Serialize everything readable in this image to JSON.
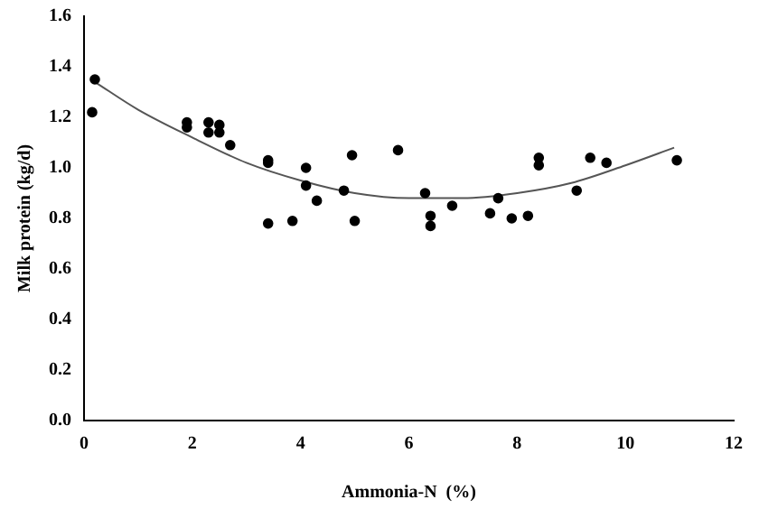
{
  "chart_data": {
    "type": "scatter",
    "xlabel": "Ammonia-N  (%)",
    "ylabel": "Milk protein (kg/d)",
    "xlim": [
      0,
      12
    ],
    "xticks": [
      0,
      2,
      4,
      6,
      8,
      10,
      12
    ],
    "ylim": [
      0,
      1.6
    ],
    "yticks": [
      {
        "value": 0,
        "label": "0.0"
      },
      {
        "value": 0.2,
        "label": "0.2"
      },
      {
        "value": 0.4,
        "label": "0.4"
      },
      {
        "value": 0.6,
        "label": "0.6"
      },
      {
        "value": 0.8,
        "label": "0.8"
      },
      {
        "value": 1,
        "label": "1.0"
      },
      {
        "value": 1.2,
        "label": "1.2"
      },
      {
        "value": 1.4,
        "label": "1.4"
      },
      {
        "value": 1.6,
        "label": "1.6"
      }
    ],
    "grid": false,
    "legend": false,
    "marker": "circle",
    "series": [
      {
        "type": "scatter",
        "color": "#000000",
        "x": [
          0.15,
          0.2,
          1.9,
          1.9,
          2.3,
          2.3,
          2.5,
          2.5,
          2.7,
          3.4,
          3.4,
          3.4,
          3.85,
          4.1,
          4.1,
          4.3,
          4.8,
          4.95,
          5.0,
          5.8,
          6.3,
          6.4,
          6.4,
          6.8,
          7.5,
          7.65,
          7.9,
          8.2,
          8.4,
          8.4,
          9.1,
          9.35,
          9.65,
          10.95
        ],
        "values": [
          1.22,
          1.35,
          1.18,
          1.16,
          1.18,
          1.14,
          1.17,
          1.14,
          1.09,
          1.03,
          1.02,
          0.78,
          0.79,
          1.0,
          0.93,
          0.87,
          0.91,
          1.05,
          0.79,
          1.07,
          0.9,
          0.81,
          0.77,
          0.85,
          0.82,
          0.88,
          0.8,
          0.81,
          1.04,
          1.01,
          0.91,
          1.04,
          1.02,
          1.03
        ]
      },
      {
        "type": "line",
        "color": "#555555",
        "line_style": "solid",
        "marker": "none",
        "x": [
          0.2,
          1,
          2,
          3,
          4,
          5,
          6,
          7,
          8,
          9,
          10,
          10.9
        ],
        "values": [
          1.34,
          1.23,
          1.12,
          1.02,
          0.95,
          0.9,
          0.88,
          0.88,
          0.9,
          0.94,
          1.01,
          1.08
        ]
      }
    ]
  }
}
